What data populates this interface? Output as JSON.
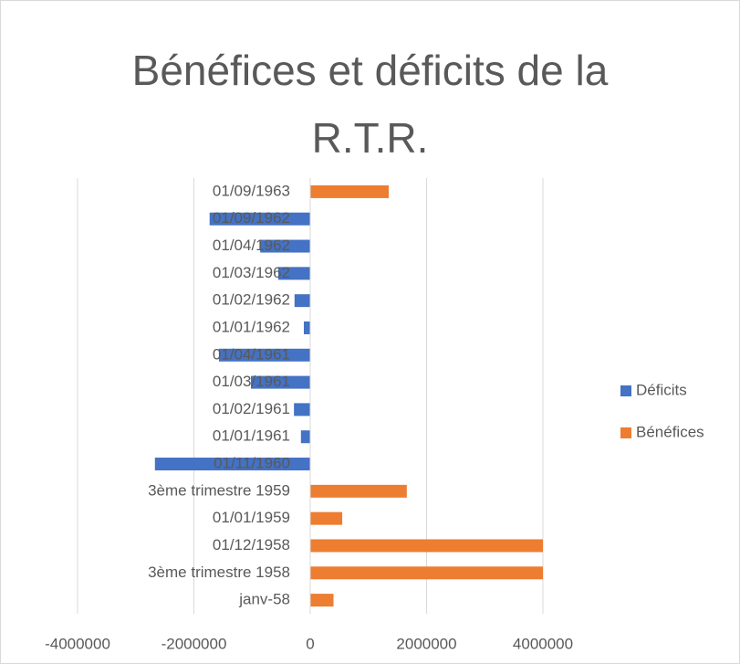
{
  "chart_data": {
    "type": "hbar",
    "title": "Bénéfices et déficits de la R.T.R.",
    "categories": [
      "janv-58",
      "3ème trimestre 1958",
      "01/12/1958",
      "01/01/1959",
      "3ème trimestre 1959",
      "01/11/1960",
      "01/01/1961",
      "01/02/1961",
      "01/03/1961",
      "01/04/1961",
      "01/01/1962",
      "01/02/1962",
      "01/03/1962",
      "01/04/1962",
      "01/09/1962",
      "01/09/1963"
    ],
    "series": [
      {
        "name": "Déficits",
        "color": "#4472c4",
        "values": [
          null,
          null,
          null,
          null,
          null,
          -2670000,
          -160000,
          -280000,
          -1020000,
          -1570000,
          -110000,
          -270000,
          -550000,
          -860000,
          -1730000,
          null
        ]
      },
      {
        "name": "Bénéfices",
        "color": "#ed7d31",
        "values": [
          400000,
          4000000,
          4000000,
          550000,
          1660000,
          null,
          null,
          null,
          null,
          null,
          null,
          null,
          null,
          null,
          null,
          1350000
        ]
      }
    ],
    "xlim": [
      -4000000,
      4000000
    ],
    "xticks": [
      -4000000,
      -2000000,
      0,
      2000000,
      4000000
    ],
    "grid": true,
    "legend": "right"
  }
}
